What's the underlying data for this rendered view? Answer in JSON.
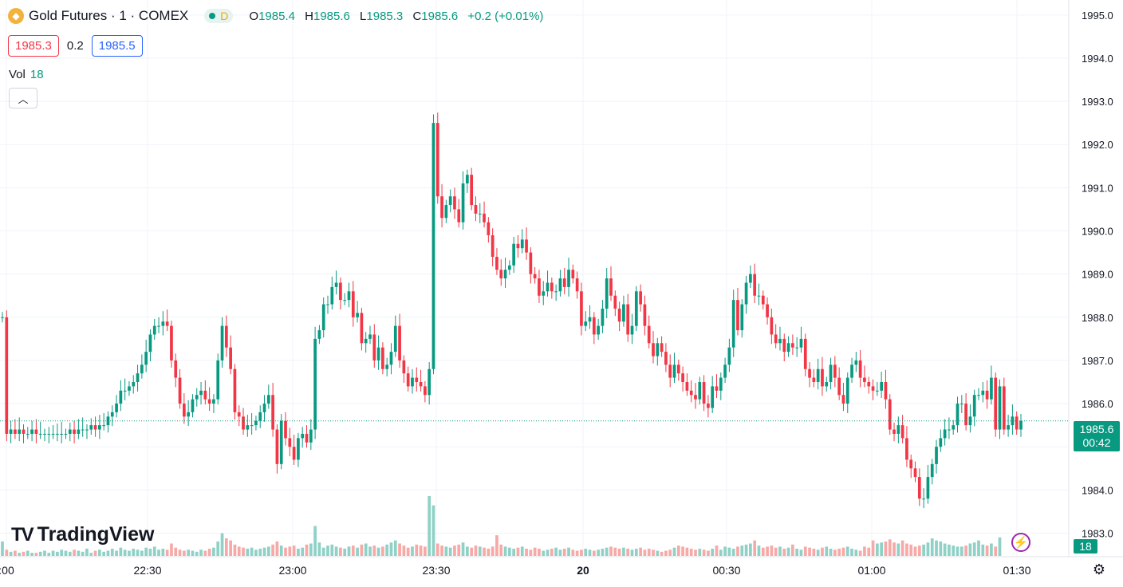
{
  "header": {
    "symbol": "Gold Futures · 1 · COMEX",
    "status_letter": "D",
    "o_label": "O",
    "o_value": "1985.4",
    "h_label": "H",
    "h_value": "1985.6",
    "l_label": "L",
    "l_value": "1985.3",
    "c_label": "C",
    "c_value": "1985.6",
    "change": "+0.2 (+0.01%)"
  },
  "quote": {
    "bid": "1985.3",
    "spread": "0.2",
    "ask": "1985.5"
  },
  "volume_legend": {
    "label": "Vol",
    "value": "18"
  },
  "brand": "TradingView",
  "last_price_label": {
    "price": "1985.6",
    "countdown": "00:42"
  },
  "volume_axis_label": "18",
  "colors": {
    "up": "#089981",
    "down": "#f23645",
    "up_vol": "#8fd1c6",
    "down_vol": "#f7a9a7",
    "grid": "#f0f3fa"
  },
  "icons": [
    "gold-logo-icon",
    "chevron-up-icon",
    "lightning-icon",
    "gear-icon"
  ],
  "chart_data": {
    "type": "candlestick",
    "interval": "1 minute",
    "y_ticks": [
      1983.0,
      1984.0,
      1985.0,
      1986.0,
      1987.0,
      1988.0,
      1989.0,
      1990.0,
      1991.0,
      1992.0,
      1993.0,
      1994.0,
      1995.0
    ],
    "x_ticks": [
      ":00",
      "22:30",
      "23:00",
      "23:30",
      "20",
      "00:30",
      "01:00",
      "01:30"
    ],
    "ylim": [
      1982.75,
      1995.2
    ],
    "last_price": 1985.6,
    "closes": [
      1988.0,
      1985.3,
      1985.4,
      1985.3,
      1985.4,
      1985.3,
      1985.3,
      1985.4,
      1985.3,
      1985.3,
      1985.3,
      1985.3,
      1985.3,
      1985.3,
      1985.3,
      1985.3,
      1985.4,
      1985.3,
      1985.4,
      1985.4,
      1985.4,
      1985.5,
      1985.4,
      1985.5,
      1985.5,
      1985.7,
      1985.8,
      1986.0,
      1986.3,
      1986.3,
      1986.4,
      1986.5,
      1986.7,
      1986.9,
      1987.2,
      1987.6,
      1987.8,
      1987.8,
      1987.9,
      1987.8,
      1987.0,
      1986.6,
      1986.0,
      1985.7,
      1985.8,
      1986.1,
      1986.2,
      1986.3,
      1986.1,
      1986.0,
      1986.1,
      1987.0,
      1987.8,
      1987.3,
      1986.8,
      1985.8,
      1985.7,
      1985.4,
      1985.5,
      1985.5,
      1985.6,
      1985.8,
      1986.0,
      1986.2,
      1985.4,
      1984.6,
      1985.6,
      1985.2,
      1985.0,
      1984.7,
      1985.2,
      1985.3,
      1985.1,
      1985.4,
      1987.5,
      1987.7,
      1988.3,
      1988.3,
      1988.7,
      1988.8,
      1988.4,
      1988.4,
      1988.6,
      1988.0,
      1988.1,
      1987.4,
      1987.5,
      1987.6,
      1987.0,
      1987.3,
      1986.8,
      1986.9,
      1987.2,
      1987.8,
      1987.0,
      1986.7,
      1986.4,
      1986.6,
      1986.5,
      1986.4,
      1986.2,
      1986.8,
      1992.5,
      1990.8,
      1990.3,
      1990.6,
      1990.8,
      1990.5,
      1990.2,
      1991.1,
      1991.3,
      1990.6,
      1990.4,
      1990.4,
      1990.2,
      1989.9,
      1989.4,
      1989.1,
      1988.9,
      1989.1,
      1989.2,
      1989.7,
      1989.6,
      1989.8,
      1989.5,
      1989.0,
      1988.9,
      1988.5,
      1988.6,
      1988.8,
      1988.6,
      1988.6,
      1988.9,
      1988.7,
      1989.1,
      1988.9,
      1988.6,
      1987.8,
      1987.9,
      1988.0,
      1987.6,
      1987.8,
      1988.2,
      1988.9,
      1988.5,
      1988.2,
      1987.9,
      1988.3,
      1987.6,
      1987.8,
      1988.6,
      1988.3,
      1987.8,
      1987.4,
      1987.1,
      1987.4,
      1987.2,
      1986.9,
      1986.6,
      1986.9,
      1986.7,
      1986.5,
      1986.3,
      1986.2,
      1986.1,
      1986.5,
      1986.0,
      1985.9,
      1986.4,
      1986.3,
      1986.6,
      1986.9,
      1987.3,
      1988.4,
      1987.7,
      1988.3,
      1988.8,
      1989.0,
      1988.5,
      1988.5,
      1988.3,
      1988.0,
      1987.6,
      1987.4,
      1987.5,
      1987.2,
      1987.4,
      1987.3,
      1987.3,
      1987.5,
      1986.8,
      1986.6,
      1986.5,
      1986.8,
      1986.4,
      1986.5,
      1986.9,
      1986.6,
      1986.2,
      1986.0,
      1986.6,
      1986.9,
      1987.0,
      1986.6,
      1986.5,
      1986.4,
      1986.3,
      1986.3,
      1986.5,
      1986.1,
      1985.4,
      1985.3,
      1985.5,
      1985.2,
      1984.7,
      1984.5,
      1984.3,
      1983.8,
      1983.8,
      1984.3,
      1984.6,
      1985.0,
      1985.2,
      1985.4,
      1985.4,
      1985.5,
      1986.0,
      1986.0,
      1985.5,
      1985.7,
      1986.2,
      1986.2,
      1986.3,
      1986.1,
      1986.6,
      1985.4,
      1986.4,
      1985.4,
      1985.5,
      1985.7,
      1985.4,
      1985.6
    ],
    "open_first": 1988.0,
    "volumes": [
      14,
      6,
      4,
      5,
      3,
      4,
      5,
      3,
      3,
      4,
      5,
      3,
      5,
      4,
      6,
      5,
      4,
      6,
      5,
      4,
      7,
      3,
      5,
      6,
      4,
      5,
      7,
      5,
      8,
      6,
      5,
      7,
      6,
      5,
      8,
      7,
      9,
      6,
      7,
      6,
      12,
      8,
      6,
      5,
      6,
      5,
      4,
      6,
      5,
      7,
      8,
      14,
      22,
      17,
      15,
      11,
      9,
      8,
      7,
      8,
      6,
      7,
      8,
      9,
      11,
      14,
      10,
      8,
      9,
      10,
      7,
      8,
      11,
      12,
      29,
      13,
      8,
      10,
      11,
      9,
      8,
      7,
      9,
      10,
      8,
      11,
      12,
      9,
      10,
      8,
      9,
      11,
      13,
      15,
      12,
      10,
      8,
      9,
      11,
      10,
      9,
      58,
      49,
      12,
      10,
      9,
      8,
      10,
      11,
      13,
      9,
      8,
      10,
      9,
      8,
      7,
      9,
      20,
      11,
      9,
      8,
      7,
      8,
      9,
      7,
      6,
      8,
      7,
      5,
      6,
      7,
      8,
      6,
      7,
      8,
      6,
      5,
      6,
      7,
      6,
      5,
      6,
      7,
      8,
      9,
      8,
      7,
      8,
      7,
      6,
      7,
      8,
      6,
      7,
      6,
      5,
      4,
      5,
      6,
      8,
      10,
      9,
      8,
      7,
      6,
      7,
      6,
      5,
      7,
      10,
      6,
      9,
      8,
      7,
      9,
      10,
      11,
      12,
      15,
      10,
      8,
      9,
      10,
      8,
      9,
      7,
      8,
      11,
      7,
      6,
      9,
      8,
      7,
      6,
      8,
      9,
      7,
      6,
      7,
      8,
      9,
      7,
      6,
      5,
      9,
      8,
      15,
      12,
      13,
      14,
      16,
      13,
      12,
      15,
      12,
      11,
      9,
      10,
      11,
      13,
      17,
      15,
      14,
      12,
      11,
      10,
      9,
      9,
      10,
      12,
      13,
      15,
      11,
      10,
      12,
      9,
      18
    ]
  }
}
